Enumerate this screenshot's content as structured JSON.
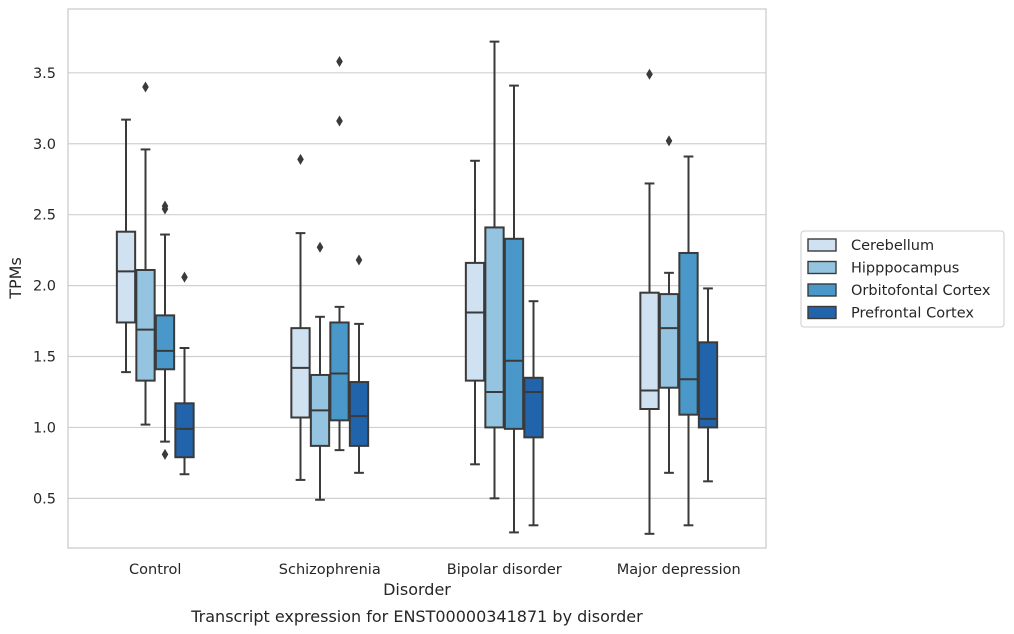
{
  "chart_data": {
    "type": "box",
    "xlabel": "Disorder",
    "ylabel": "TPMs",
    "caption": "Transcript expression for ENST00000341871 by disorder",
    "ylim": [
      0.15,
      3.95
    ],
    "yticks": [
      "0.5",
      "1.0",
      "1.5",
      "2.0",
      "2.5",
      "3.0",
      "3.5"
    ],
    "grid": true,
    "legend_position": "right",
    "categories": [
      "Control",
      "Schizophrenia",
      "Bipolar disorder",
      "Major depression"
    ],
    "series": [
      {
        "name": "Cerebellum",
        "color": "#d0e1f2",
        "boxes": [
          {
            "whislo": 1.39,
            "q1": 1.74,
            "med": 2.1,
            "q3": 2.38,
            "whishi": 3.17,
            "fliers": []
          },
          {
            "whislo": 0.63,
            "q1": 1.07,
            "med": 1.42,
            "q3": 1.7,
            "whishi": 2.37,
            "fliers": [
              2.89
            ]
          },
          {
            "whislo": 0.74,
            "q1": 1.33,
            "med": 1.81,
            "q3": 2.16,
            "whishi": 2.88,
            "fliers": []
          },
          {
            "whislo": 0.25,
            "q1": 1.13,
            "med": 1.26,
            "q3": 1.95,
            "whishi": 2.72,
            "fliers": [
              3.49
            ]
          }
        ]
      },
      {
        "name": "Hipppocampus",
        "color": "#94c4df",
        "boxes": [
          {
            "whislo": 1.02,
            "q1": 1.33,
            "med": 1.69,
            "q3": 2.11,
            "whishi": 2.96,
            "fliers": [
              3.4
            ]
          },
          {
            "whislo": 0.49,
            "q1": 0.87,
            "med": 1.12,
            "q3": 1.37,
            "whishi": 1.78,
            "fliers": [
              2.27
            ]
          },
          {
            "whislo": 0.5,
            "q1": 1.0,
            "med": 1.25,
            "q3": 2.41,
            "whishi": 3.72,
            "fliers": []
          },
          {
            "whislo": 0.68,
            "q1": 1.28,
            "med": 1.7,
            "q3": 1.94,
            "whishi": 2.09,
            "fliers": [
              3.02
            ]
          }
        ]
      },
      {
        "name": "Orbitofontal Cortex",
        "color": "#4a98c9",
        "boxes": [
          {
            "whislo": 0.9,
            "q1": 1.41,
            "med": 1.54,
            "q3": 1.79,
            "whishi": 2.36,
            "fliers": [
              2.54,
              2.56,
              0.81
            ]
          },
          {
            "whislo": 0.84,
            "q1": 1.05,
            "med": 1.38,
            "q3": 1.74,
            "whishi": 1.85,
            "fliers": [
              3.16,
              3.58
            ]
          },
          {
            "whislo": 0.26,
            "q1": 0.99,
            "med": 1.47,
            "q3": 2.33,
            "whishi": 3.41,
            "fliers": []
          },
          {
            "whislo": 0.31,
            "q1": 1.09,
            "med": 1.34,
            "q3": 2.23,
            "whishi": 2.91,
            "fliers": []
          }
        ]
      },
      {
        "name": "Prefrontal Cortex",
        "color": "#2164ab",
        "boxes": [
          {
            "whislo": 0.67,
            "q1": 0.79,
            "med": 0.99,
            "q3": 1.17,
            "whishi": 1.56,
            "fliers": [
              2.06
            ]
          },
          {
            "whislo": 0.68,
            "q1": 0.87,
            "med": 1.08,
            "q3": 1.32,
            "whishi": 1.73,
            "fliers": [
              2.18
            ]
          },
          {
            "whislo": 0.31,
            "q1": 0.93,
            "med": 1.25,
            "q3": 1.35,
            "whishi": 1.89,
            "fliers": []
          },
          {
            "whislo": 0.62,
            "q1": 1.0,
            "med": 1.06,
            "q3": 1.6,
            "whishi": 1.98,
            "fliers": []
          }
        ]
      }
    ]
  }
}
